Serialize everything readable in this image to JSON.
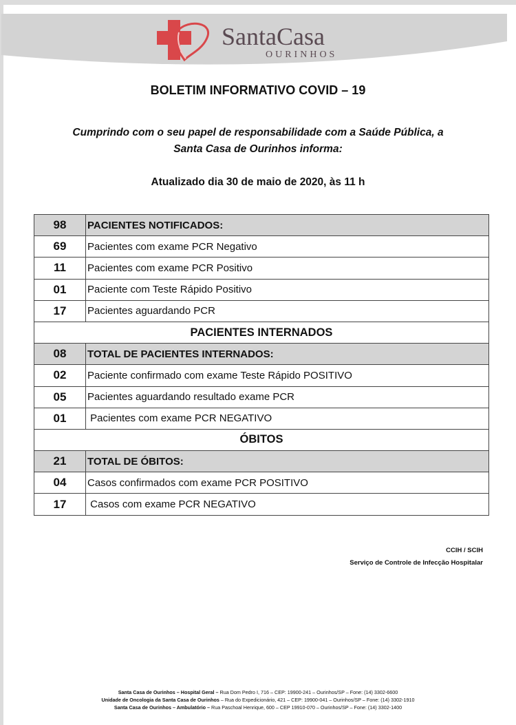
{
  "header": {
    "logo_name": "SantaCasa",
    "logo_sub": "OURINHOS",
    "accent": "#d9474a"
  },
  "title": "BOLETIM INFORMATIVO COVID – 19",
  "intro": {
    "line1": "Cumprindo com o seu papel de responsabilidade com a Saúde Pública, a",
    "line2": "Santa Casa de Ourinhos informa:"
  },
  "updated": "Atualizado dia 30 de maio de 2020, às 11 h",
  "table": [
    {
      "type": "hdr",
      "num": "98",
      "label": "PACIENTES NOTIFICADOS:"
    },
    {
      "type": "row",
      "num": "69",
      "label": "Pacientes com exame PCR Negativo"
    },
    {
      "type": "row",
      "num": "11",
      "label": "Pacientes com exame PCR Positivo"
    },
    {
      "type": "row",
      "num": "01",
      "label": "Paciente com Teste Rápido Positivo"
    },
    {
      "type": "row",
      "num": "17",
      "label": "Pacientes aguardando PCR"
    },
    {
      "type": "sec",
      "label": "PACIENTES INTERNADOS"
    },
    {
      "type": "hdr",
      "num": "08",
      "label": "TOTAL DE PACIENTES INTERNADOS:"
    },
    {
      "type": "row",
      "num": "02",
      "label": "Paciente confirmado com exame Teste Rápido POSITIVO"
    },
    {
      "type": "row",
      "num": "05",
      "label": "Pacientes aguardando resultado exame PCR"
    },
    {
      "type": "row",
      "num": "01",
      "label": " Pacientes com exame PCR NEGATIVO"
    },
    {
      "type": "sec",
      "label": "ÓBITOS"
    },
    {
      "type": "hdr",
      "num": "21",
      "label": "TOTAL DE ÓBITOS:"
    },
    {
      "type": "row",
      "num": "04",
      "label": "Casos confirmados com exame PCR POSITIVO"
    },
    {
      "type": "row",
      "num": "17",
      "label": " Casos com exame PCR NEGATIVO"
    }
  ],
  "signature": {
    "line1": "CCIH / SCIH",
    "line2": "Serviço de Controle de Infecção Hospitalar"
  },
  "footer": [
    {
      "bold": "Santa Casa de Ourinhos – Hospital Geral – ",
      "text": "Rua Dom Pedro I, 716 – CEP: 19900-241 – Ourinhos/SP – Fone: (14) 3302-6600"
    },
    {
      "bold": "Unidade de Oncologia da Santa Casa de Ourinhos ",
      "text": " – Rua do Expedicionário, 421 – CEP: 19900-041 – Ourinhos/SP – Fone: (14) 3302-1910"
    },
    {
      "bold": "Santa Casa de  Ourinhos – Ambulatório – ",
      "text": "Rua Paschoal Henrique, 600 – CEP 19910-070 – Ourinhos/SP – Fone: (14) 3302-1400"
    }
  ]
}
